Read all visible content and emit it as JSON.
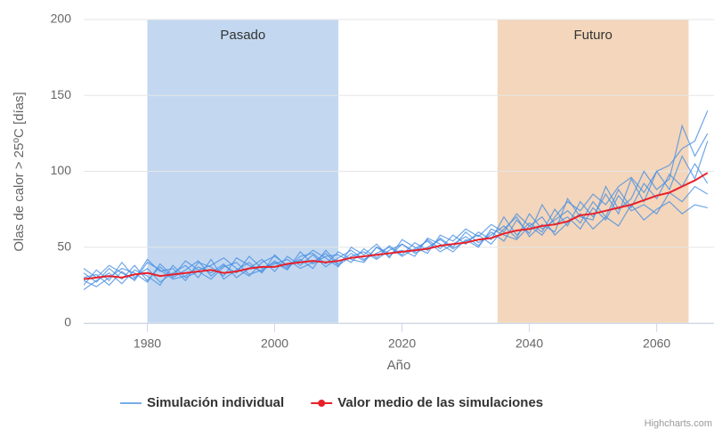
{
  "chart_data": {
    "type": "line",
    "xlabel": "Año",
    "ylabel": "Olas de calor > 25ºC [días]",
    "credit": "Highcharts.com",
    "xlim": [
      1970,
      2069
    ],
    "ylim": [
      0,
      200
    ],
    "xticks": [
      1980,
      2000,
      2020,
      2040,
      2060
    ],
    "yticks": [
      0,
      50,
      100,
      150,
      200
    ],
    "grid": true,
    "legend": "bottom",
    "plot_bands": [
      {
        "from": 1980,
        "to": 2010,
        "label": "Pasado",
        "color": "#c3d8f0"
      },
      {
        "from": 2035,
        "to": 2065,
        "label": "Futuro",
        "color": "#f3d6bb"
      }
    ],
    "x": [
      1970,
      1972,
      1974,
      1976,
      1978,
      1980,
      1982,
      1984,
      1986,
      1988,
      1990,
      1992,
      1994,
      1996,
      1998,
      2000,
      2002,
      2004,
      2006,
      2008,
      2010,
      2012,
      2014,
      2016,
      2018,
      2020,
      2022,
      2024,
      2026,
      2028,
      2030,
      2032,
      2034,
      2036,
      2038,
      2040,
      2042,
      2044,
      2046,
      2048,
      2050,
      2052,
      2054,
      2056,
      2058,
      2060,
      2062,
      2064,
      2066,
      2068
    ],
    "series": [
      {
        "name": "Simulación individual",
        "color": "#4a90e2",
        "lines": [
          [
            25,
            35,
            28,
            40,
            30,
            36,
            27,
            33,
            38,
            30,
            42,
            29,
            35,
            40,
            33,
            45,
            37,
            42,
            36,
            48,
            39,
            46,
            41,
            50,
            44,
            52,
            47,
            55,
            49,
            58,
            52,
            60,
            55,
            70,
            58,
            66,
            60,
            75,
            64,
            80,
            70,
            85,
            72,
            95,
            80,
            100,
            88,
            110,
            95,
            120
          ],
          [
            33,
            27,
            36,
            29,
            38,
            28,
            37,
            30,
            35,
            41,
            31,
            38,
            33,
            44,
            36,
            40,
            35,
            47,
            39,
            44,
            45,
            40,
            49,
            43,
            51,
            45,
            53,
            48,
            56,
            50,
            60,
            53,
            58,
            64,
            56,
            72,
            62,
            68,
            74,
            66,
            80,
            70,
            88,
            76,
            92,
            82,
            98,
            90,
            105,
            92
          ],
          [
            30,
            32,
            25,
            34,
            28,
            40,
            35,
            29,
            31,
            37,
            33,
            39,
            30,
            36,
            42,
            34,
            44,
            38,
            45,
            37,
            43,
            48,
            42,
            46,
            50,
            44,
            49,
            54,
            47,
            52,
            57,
            51,
            60,
            54,
            68,
            59,
            78,
            65,
            70,
            62,
            76,
            68,
            84,
            74,
            78,
            72,
            86,
            80,
            90,
            85
          ],
          [
            22,
            28,
            33,
            26,
            35,
            31,
            25,
            38,
            30,
            34,
            29,
            37,
            40,
            32,
            35,
            39,
            42,
            36,
            40,
            46,
            38,
            44,
            47,
            42,
            48,
            52,
            46,
            50,
            55,
            49,
            54,
            58,
            52,
            62,
            70,
            57,
            65,
            60,
            82,
            70,
            68,
            90,
            75,
            82,
            100,
            88,
            95,
            130,
            110,
            125
          ],
          [
            36,
            30,
            38,
            33,
            29,
            42,
            34,
            36,
            28,
            40,
            37,
            31,
            43,
            38,
            34,
            41,
            36,
            44,
            46,
            39,
            47,
            42,
            40,
            50,
            46,
            48,
            44,
            56,
            52,
            47,
            55,
            50,
            62,
            58,
            55,
            64,
            70,
            58,
            66,
            72,
            62,
            70,
            64,
            78,
            68,
            75,
            80,
            72,
            78,
            76
          ],
          [
            28,
            24,
            30,
            36,
            33,
            27,
            39,
            31,
            41,
            35,
            38,
            43,
            36,
            31,
            40,
            44,
            38,
            41,
            48,
            43,
            37,
            50,
            45,
            52,
            43,
            55,
            50,
            46,
            58,
            54,
            62,
            57,
            65,
            60,
            72,
            64,
            58,
            70,
            80,
            74,
            85,
            78,
            90,
            96,
            86,
            100,
            104,
            115,
            120,
            140
          ]
        ]
      },
      {
        "name": "Valor medio de las simulaciones",
        "color": "#e8202a",
        "values": [
          29,
          30,
          31,
          30,
          32,
          33,
          31,
          32,
          33,
          34,
          35,
          33,
          34,
          36,
          37,
          37,
          39,
          40,
          41,
          40,
          41,
          43,
          44,
          45,
          46,
          47,
          48,
          49,
          51,
          52,
          53,
          55,
          56,
          59,
          61,
          62,
          64,
          65,
          67,
          71,
          72,
          74,
          76,
          78,
          81,
          84,
          86,
          90,
          94,
          99
        ]
      }
    ]
  }
}
